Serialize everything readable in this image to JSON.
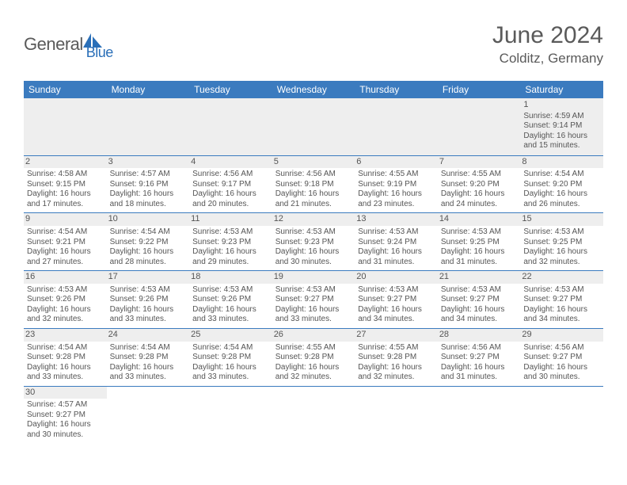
{
  "logo": {
    "part1": "General",
    "part2": "Blue",
    "shape_color": "#2a6fb8"
  },
  "title": "June 2024",
  "location": "Colditz, Germany",
  "colors": {
    "header_bg": "#3b7bbf",
    "header_text": "#ffffff",
    "daynum_bg": "#eeeeee",
    "rule": "#3b7bbf",
    "text": "#555555"
  },
  "day_headers": [
    "Sunday",
    "Monday",
    "Tuesday",
    "Wednesday",
    "Thursday",
    "Friday",
    "Saturday"
  ],
  "weeks": [
    [
      null,
      null,
      null,
      null,
      null,
      null,
      {
        "n": "1",
        "sr": "4:59 AM",
        "ss": "9:14 PM",
        "dl": "16 hours and 15 minutes."
      }
    ],
    [
      {
        "n": "2",
        "sr": "4:58 AM",
        "ss": "9:15 PM",
        "dl": "16 hours and 17 minutes."
      },
      {
        "n": "3",
        "sr": "4:57 AM",
        "ss": "9:16 PM",
        "dl": "16 hours and 18 minutes."
      },
      {
        "n": "4",
        "sr": "4:56 AM",
        "ss": "9:17 PM",
        "dl": "16 hours and 20 minutes."
      },
      {
        "n": "5",
        "sr": "4:56 AM",
        "ss": "9:18 PM",
        "dl": "16 hours and 21 minutes."
      },
      {
        "n": "6",
        "sr": "4:55 AM",
        "ss": "9:19 PM",
        "dl": "16 hours and 23 minutes."
      },
      {
        "n": "7",
        "sr": "4:55 AM",
        "ss": "9:20 PM",
        "dl": "16 hours and 24 minutes."
      },
      {
        "n": "8",
        "sr": "4:54 AM",
        "ss": "9:20 PM",
        "dl": "16 hours and 26 minutes."
      }
    ],
    [
      {
        "n": "9",
        "sr": "4:54 AM",
        "ss": "9:21 PM",
        "dl": "16 hours and 27 minutes."
      },
      {
        "n": "10",
        "sr": "4:54 AM",
        "ss": "9:22 PM",
        "dl": "16 hours and 28 minutes."
      },
      {
        "n": "11",
        "sr": "4:53 AM",
        "ss": "9:23 PM",
        "dl": "16 hours and 29 minutes."
      },
      {
        "n": "12",
        "sr": "4:53 AM",
        "ss": "9:23 PM",
        "dl": "16 hours and 30 minutes."
      },
      {
        "n": "13",
        "sr": "4:53 AM",
        "ss": "9:24 PM",
        "dl": "16 hours and 31 minutes."
      },
      {
        "n": "14",
        "sr": "4:53 AM",
        "ss": "9:25 PM",
        "dl": "16 hours and 31 minutes."
      },
      {
        "n": "15",
        "sr": "4:53 AM",
        "ss": "9:25 PM",
        "dl": "16 hours and 32 minutes."
      }
    ],
    [
      {
        "n": "16",
        "sr": "4:53 AM",
        "ss": "9:26 PM",
        "dl": "16 hours and 32 minutes."
      },
      {
        "n": "17",
        "sr": "4:53 AM",
        "ss": "9:26 PM",
        "dl": "16 hours and 33 minutes."
      },
      {
        "n": "18",
        "sr": "4:53 AM",
        "ss": "9:26 PM",
        "dl": "16 hours and 33 minutes."
      },
      {
        "n": "19",
        "sr": "4:53 AM",
        "ss": "9:27 PM",
        "dl": "16 hours and 33 minutes."
      },
      {
        "n": "20",
        "sr": "4:53 AM",
        "ss": "9:27 PM",
        "dl": "16 hours and 34 minutes."
      },
      {
        "n": "21",
        "sr": "4:53 AM",
        "ss": "9:27 PM",
        "dl": "16 hours and 34 minutes."
      },
      {
        "n": "22",
        "sr": "4:53 AM",
        "ss": "9:27 PM",
        "dl": "16 hours and 34 minutes."
      }
    ],
    [
      {
        "n": "23",
        "sr": "4:54 AM",
        "ss": "9:28 PM",
        "dl": "16 hours and 33 minutes."
      },
      {
        "n": "24",
        "sr": "4:54 AM",
        "ss": "9:28 PM",
        "dl": "16 hours and 33 minutes."
      },
      {
        "n": "25",
        "sr": "4:54 AM",
        "ss": "9:28 PM",
        "dl": "16 hours and 33 minutes."
      },
      {
        "n": "26",
        "sr": "4:55 AM",
        "ss": "9:28 PM",
        "dl": "16 hours and 32 minutes."
      },
      {
        "n": "27",
        "sr": "4:55 AM",
        "ss": "9:28 PM",
        "dl": "16 hours and 32 minutes."
      },
      {
        "n": "28",
        "sr": "4:56 AM",
        "ss": "9:27 PM",
        "dl": "16 hours and 31 minutes."
      },
      {
        "n": "29",
        "sr": "4:56 AM",
        "ss": "9:27 PM",
        "dl": "16 hours and 30 minutes."
      }
    ],
    [
      {
        "n": "30",
        "sr": "4:57 AM",
        "ss": "9:27 PM",
        "dl": "16 hours and 30 minutes."
      },
      null,
      null,
      null,
      null,
      null,
      null
    ]
  ],
  "labels": {
    "sunrise": "Sunrise:",
    "sunset": "Sunset:",
    "daylight": "Daylight:"
  }
}
